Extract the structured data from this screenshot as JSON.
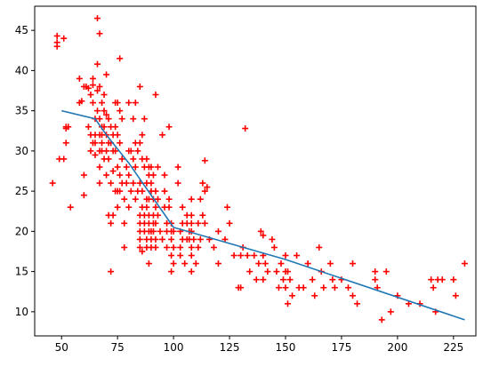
{
  "chart_data": {
    "type": "scatter",
    "title": "",
    "xlabel": "",
    "ylabel": "",
    "xlim": [
      38,
      235
    ],
    "ylim": [
      7,
      48
    ],
    "xticks": [
      50,
      75,
      100,
      125,
      150,
      175,
      200,
      225
    ],
    "yticks": [
      10,
      15,
      20,
      25,
      30,
      35,
      40,
      45
    ],
    "grid": false,
    "legend": "none",
    "colors": {
      "points": "#ff0000",
      "line": "#1f77b4"
    },
    "marker": "plus",
    "series": [
      {
        "type": "scatter",
        "points": [
          [
            46,
            26
          ],
          [
            48,
            43
          ],
          [
            48,
            43.5
          ],
          [
            48,
            44.3
          ],
          [
            49,
            29
          ],
          [
            51,
            44
          ],
          [
            51,
            29
          ],
          [
            52,
            33
          ],
          [
            52,
            32.8
          ],
          [
            52,
            31
          ],
          [
            53,
            33
          ],
          [
            54,
            23
          ],
          [
            58,
            39
          ],
          [
            58,
            36
          ],
          [
            59,
            36.2
          ],
          [
            60,
            38
          ],
          [
            60,
            24.5
          ],
          [
            60,
            27
          ],
          [
            61,
            38
          ],
          [
            62,
            33
          ],
          [
            62,
            37.8
          ],
          [
            63,
            37
          ],
          [
            63,
            32
          ],
          [
            63,
            30
          ],
          [
            64,
            38.2
          ],
          [
            64,
            36
          ],
          [
            64,
            31
          ],
          [
            64,
            39
          ],
          [
            65,
            32
          ],
          [
            65,
            31
          ],
          [
            65,
            29.5
          ],
          [
            65,
            34
          ],
          [
            66,
            46.5
          ],
          [
            66,
            40.8
          ],
          [
            66,
            37.5
          ],
          [
            66,
            35
          ],
          [
            67,
            44.6
          ],
          [
            67,
            38
          ],
          [
            67,
            34
          ],
          [
            67,
            32
          ],
          [
            67,
            30
          ],
          [
            67,
            28
          ],
          [
            67,
            26
          ],
          [
            68,
            36
          ],
          [
            68,
            33
          ],
          [
            68,
            32
          ],
          [
            68,
            31
          ],
          [
            68,
            30
          ],
          [
            69,
            37
          ],
          [
            69,
            35
          ],
          [
            69,
            33
          ],
          [
            69,
            29
          ],
          [
            70,
            39.5
          ],
          [
            70,
            34.5
          ],
          [
            70,
            32
          ],
          [
            70,
            30
          ],
          [
            70,
            27
          ],
          [
            71,
            34
          ],
          [
            71,
            31
          ],
          [
            71,
            29
          ],
          [
            71,
            22
          ],
          [
            72,
            33
          ],
          [
            72,
            31
          ],
          [
            72,
            26
          ],
          [
            72,
            15
          ],
          [
            72,
            21
          ],
          [
            73,
            32
          ],
          [
            73,
            30
          ],
          [
            73,
            27.5
          ],
          [
            73,
            22
          ],
          [
            74,
            36
          ],
          [
            74,
            33
          ],
          [
            74,
            30
          ],
          [
            74,
            25
          ],
          [
            75,
            36
          ],
          [
            75,
            32
          ],
          [
            75,
            28
          ],
          [
            75,
            25
          ],
          [
            75,
            23
          ],
          [
            76,
            41.5
          ],
          [
            76,
            35
          ],
          [
            76,
            31
          ],
          [
            76,
            27
          ],
          [
            76,
            25
          ],
          [
            77,
            34
          ],
          [
            77,
            29
          ],
          [
            77,
            26
          ],
          [
            78,
            24
          ],
          [
            78,
            21
          ],
          [
            78,
            18
          ],
          [
            79,
            28
          ],
          [
            79,
            26
          ],
          [
            80,
            36
          ],
          [
            80,
            30
          ],
          [
            80,
            27
          ],
          [
            80,
            23
          ],
          [
            81,
            30
          ],
          [
            81,
            25
          ],
          [
            82,
            34
          ],
          [
            82,
            29
          ],
          [
            82,
            26
          ],
          [
            83,
            36
          ],
          [
            83,
            31
          ],
          [
            83,
            28
          ],
          [
            83,
            24
          ],
          [
            84,
            30
          ],
          [
            84,
            25
          ],
          [
            85,
            38
          ],
          [
            85,
            31
          ],
          [
            85,
            26
          ],
          [
            85,
            22
          ],
          [
            85,
            21
          ],
          [
            85,
            20
          ],
          [
            85,
            19
          ],
          [
            85,
            18
          ],
          [
            86,
            32
          ],
          [
            86,
            29
          ],
          [
            86,
            25
          ],
          [
            86,
            23
          ],
          [
            86,
            17.5
          ],
          [
            87,
            34
          ],
          [
            87,
            28
          ],
          [
            87,
            22
          ],
          [
            87,
            21
          ],
          [
            87,
            20
          ],
          [
            88,
            29
          ],
          [
            88,
            26
          ],
          [
            88,
            24
          ],
          [
            88,
            23
          ],
          [
            88,
            19
          ],
          [
            88,
            18
          ],
          [
            89,
            28
          ],
          [
            89,
            27
          ],
          [
            89,
            24
          ],
          [
            89,
            22
          ],
          [
            89,
            21
          ],
          [
            89,
            20
          ],
          [
            89,
            16
          ],
          [
            90,
            28
          ],
          [
            90,
            26
          ],
          [
            90,
            25
          ],
          [
            90,
            20
          ],
          [
            90,
            19
          ],
          [
            90,
            18
          ],
          [
            91,
            27
          ],
          [
            91,
            24
          ],
          [
            91,
            22
          ],
          [
            91,
            21
          ],
          [
            91,
            20
          ],
          [
            92,
            37
          ],
          [
            92,
            25
          ],
          [
            92,
            23
          ],
          [
            92,
            21
          ],
          [
            92,
            19
          ],
          [
            92,
            18
          ],
          [
            93,
            28
          ],
          [
            93,
            24
          ],
          [
            93,
            22
          ],
          [
            94,
            20
          ],
          [
            95,
            32
          ],
          [
            95,
            19
          ],
          [
            96,
            27
          ],
          [
            96,
            25
          ],
          [
            96,
            23
          ],
          [
            97,
            21
          ],
          [
            97,
            20
          ],
          [
            97,
            18
          ],
          [
            98,
            33
          ],
          [
            98,
            24
          ],
          [
            98,
            23
          ],
          [
            99,
            21
          ],
          [
            99,
            20
          ],
          [
            99,
            19
          ],
          [
            99,
            17
          ],
          [
            99,
            15
          ],
          [
            100,
            20
          ],
          [
            100,
            18
          ],
          [
            100,
            16
          ],
          [
            102,
            28
          ],
          [
            102,
            26
          ],
          [
            103,
            20
          ],
          [
            103,
            18
          ],
          [
            103,
            17
          ],
          [
            104,
            23
          ],
          [
            104,
            21
          ],
          [
            104,
            19
          ],
          [
            105,
            16
          ],
          [
            106,
            22
          ],
          [
            106,
            21
          ],
          [
            106,
            19
          ],
          [
            107,
            20
          ],
          [
            107,
            19
          ],
          [
            108,
            24
          ],
          [
            108,
            22
          ],
          [
            108,
            21
          ],
          [
            108,
            20
          ],
          [
            108,
            18
          ],
          [
            108,
            17
          ],
          [
            108,
            15
          ],
          [
            109,
            19
          ],
          [
            110,
            16
          ],
          [
            111,
            21
          ],
          [
            111,
            18
          ],
          [
            112,
            24
          ],
          [
            112,
            19
          ],
          [
            113,
            26
          ],
          [
            113,
            22
          ],
          [
            114,
            28.8
          ],
          [
            114,
            25
          ],
          [
            114,
            21
          ],
          [
            115,
            25.5
          ],
          [
            116,
            19
          ],
          [
            118,
            18
          ],
          [
            120,
            20
          ],
          [
            120,
            16
          ],
          [
            123,
            19
          ],
          [
            124,
            23
          ],
          [
            125,
            21
          ],
          [
            127,
            17
          ],
          [
            129,
            13
          ],
          [
            130,
            13
          ],
          [
            130,
            17
          ],
          [
            131,
            18
          ],
          [
            132,
            32.8
          ],
          [
            133,
            17
          ],
          [
            134,
            15
          ],
          [
            136,
            17
          ],
          [
            137,
            14
          ],
          [
            138,
            16
          ],
          [
            139,
            20
          ],
          [
            140,
            19.5
          ],
          [
            140,
            17
          ],
          [
            140,
            14
          ],
          [
            141,
            16
          ],
          [
            142,
            15
          ],
          [
            144,
            19
          ],
          [
            145,
            18
          ],
          [
            146,
            15
          ],
          [
            147,
            13
          ],
          [
            148,
            16
          ],
          [
            149,
            14
          ],
          [
            150,
            17
          ],
          [
            150,
            15
          ],
          [
            150,
            13
          ],
          [
            151,
            15
          ],
          [
            151,
            11
          ],
          [
            152,
            14
          ],
          [
            153,
            12
          ],
          [
            155,
            17
          ],
          [
            156,
            13
          ],
          [
            158,
            13
          ],
          [
            160,
            16
          ],
          [
            162,
            14
          ],
          [
            163,
            12
          ],
          [
            165,
            18
          ],
          [
            166,
            15
          ],
          [
            167,
            13
          ],
          [
            170,
            16
          ],
          [
            171,
            14
          ],
          [
            172,
            13
          ],
          [
            175,
            14
          ],
          [
            178,
            13
          ],
          [
            180,
            16
          ],
          [
            180,
            12
          ],
          [
            182,
            11
          ],
          [
            190,
            15
          ],
          [
            190,
            14
          ],
          [
            191,
            13
          ],
          [
            193,
            9
          ],
          [
            195,
            15
          ],
          [
            197,
            10
          ],
          [
            200,
            12
          ],
          [
            205,
            11
          ],
          [
            210,
            11
          ],
          [
            215,
            14
          ],
          [
            216,
            13
          ],
          [
            217,
            10
          ],
          [
            218,
            14
          ],
          [
            220,
            14
          ],
          [
            225,
            14
          ],
          [
            226,
            12
          ],
          [
            230,
            16
          ]
        ]
      },
      {
        "type": "line",
        "x": [
          50,
          65,
          70,
          80,
          90,
          95,
          100,
          150,
          230
        ],
        "y": [
          35,
          34,
          32,
          28.5,
          24.5,
          22.5,
          20.5,
          16.5,
          9
        ]
      }
    ]
  }
}
